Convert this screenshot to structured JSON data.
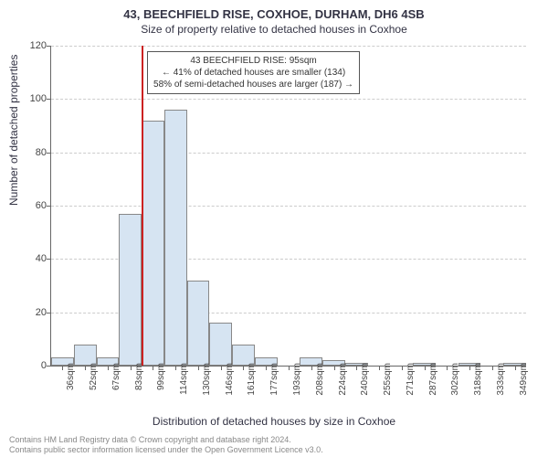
{
  "title": "43, BEECHFIELD RISE, COXHOE, DURHAM, DH6 4SB",
  "subtitle": "Size of property relative to detached houses in Coxhoe",
  "ylabel": "Number of detached properties",
  "xlabel": "Distribution of detached houses by size in Coxhoe",
  "footer_line1": "Contains HM Land Registry data © Crown copyright and database right 2024.",
  "footer_line2": "Contains public sector information licensed under the Open Government Licence v3.0.",
  "annotation": {
    "line1": "43 BEECHFIELD RISE: 95sqm",
    "line2": "← 41% of detached houses are smaller (134)",
    "line3": "58% of semi-detached houses are larger (187) →"
  },
  "chart": {
    "type": "histogram",
    "ylim": [
      0,
      120
    ],
    "yticks": [
      0,
      20,
      40,
      60,
      80,
      100,
      120
    ],
    "xticks": [
      "36sqm",
      "52sqm",
      "67sqm",
      "83sqm",
      "99sqm",
      "114sqm",
      "130sqm",
      "146sqm",
      "161sqm",
      "177sqm",
      "193sqm",
      "208sqm",
      "224sqm",
      "240sqm",
      "255sqm",
      "271sqm",
      "287sqm",
      "302sqm",
      "318sqm",
      "333sqm",
      "349sqm"
    ],
    "values": [
      3,
      8,
      3,
      57,
      92,
      96,
      32,
      16,
      8,
      3,
      0,
      3,
      2,
      1,
      0,
      0,
      1,
      0,
      1,
      0,
      1
    ],
    "bar_fill": "#d6e4f2",
    "bar_stroke": "#888888",
    "grid_color": "#cccccc",
    "axis_color": "#666666",
    "marker_color": "#cc2222",
    "marker_bin_index": 4,
    "background": "#ffffff",
    "title_fontsize": 13,
    "subtitle_fontsize": 12,
    "label_fontsize": 12,
    "tick_fontsize": 11
  }
}
